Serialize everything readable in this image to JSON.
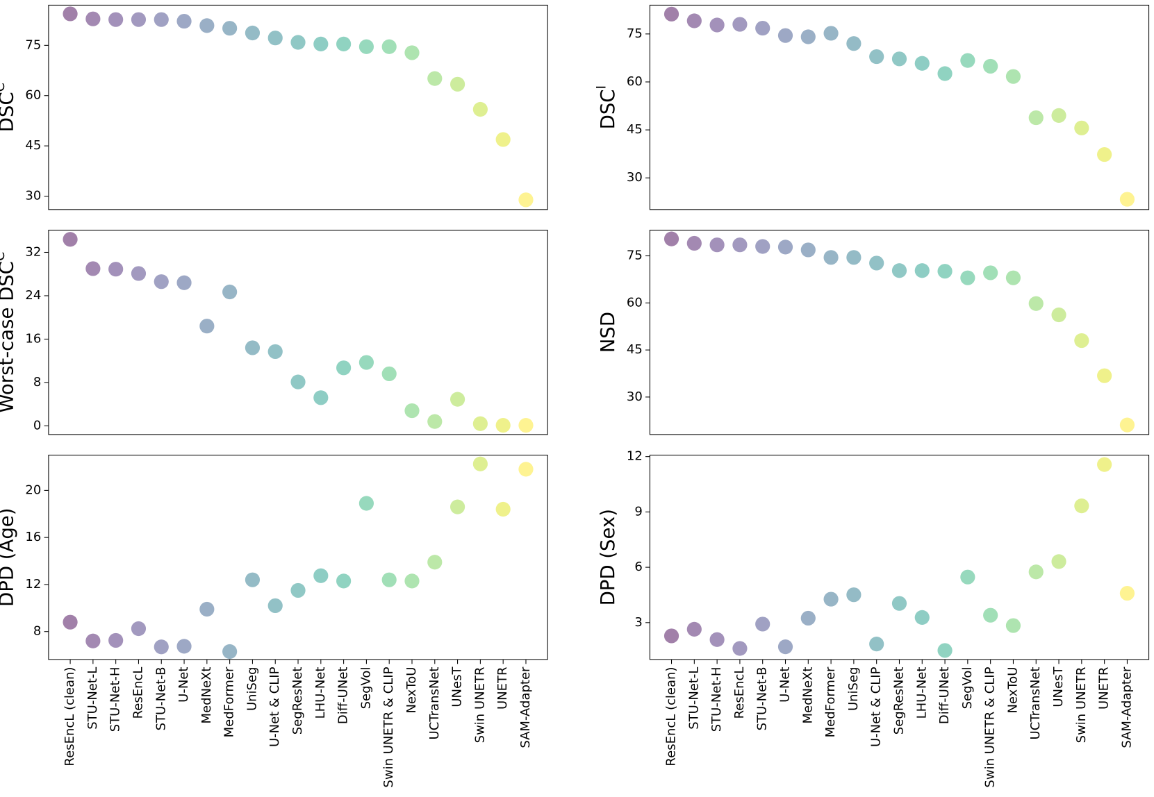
{
  "chart_data": [
    {
      "type": "scatter",
      "ylabel": "DSC",
      "ylabel_superscript": "C",
      "xticklabels": false,
      "categories": [
        "ResEncL (clean)",
        "STU-Net-L",
        "STU-Net-H",
        "ResEncL",
        "STU-Net-B",
        "U-Net",
        "MedNeXt",
        "MedFormer",
        "UniSeg",
        "U-Net & CLIP",
        "SegResNet",
        "LHU-Net",
        "Diff-UNet",
        "SegVol",
        "Swin UNETR & CLIP",
        "NexToU",
        "UCTransNet",
        "UNesT",
        "Swin UNETR",
        "UNETR",
        "SAM-Adapter"
      ],
      "values": [
        84.4,
        82.9,
        82.7,
        82.7,
        82.7,
        82.2,
        80.9,
        80.1,
        78.7,
        77.2,
        75.9,
        75.4,
        75.4,
        74.6,
        74.6,
        72.8,
        65.1,
        63.4,
        55.9,
        46.9,
        28.9
      ],
      "colors": [
        "#440154",
        "#471365",
        "#482475",
        "#463480",
        "#414487",
        "#3b528b",
        "#355f8d",
        "#2f6c8e",
        "#2a788e",
        "#25848e",
        "#21918c",
        "#1e9c89",
        "#22a884",
        "#2fb47c",
        "#44bf70",
        "#5ec962",
        "#7ad151",
        "#9bd93c",
        "#bddf26",
        "#dfe318",
        "#fde725"
      ],
      "ylim": [
        26,
        87
      ],
      "yticks": [
        30,
        45,
        60,
        75
      ]
    },
    {
      "type": "scatter",
      "ylabel": "DSC",
      "ylabel_superscript": "I",
      "xticklabels": false,
      "categories": [
        "ResEncL (clean)",
        "STU-Net-L",
        "STU-Net-H",
        "ResEncL",
        "STU-Net-B",
        "U-Net",
        "MedNeXt",
        "MedFormer",
        "UniSeg",
        "U-Net & CLIP",
        "SegResNet",
        "LHU-Net",
        "Diff-UNet",
        "SegVol",
        "Swin UNETR & CLIP",
        "NexToU",
        "UCTransNet",
        "UNesT",
        "Swin UNETR",
        "UNETR",
        "SAM-Adapter"
      ],
      "values": [
        81.2,
        79.1,
        77.8,
        78.0,
        76.8,
        74.5,
        74.1,
        75.2,
        72.0,
        67.9,
        67.2,
        65.8,
        62.6,
        66.7,
        64.9,
        61.7,
        48.8,
        49.5,
        45.6,
        37.3,
        23.3
      ],
      "colors": [
        "#440154",
        "#471365",
        "#482475",
        "#463480",
        "#414487",
        "#3b528b",
        "#355f8d",
        "#2f6c8e",
        "#2a788e",
        "#25848e",
        "#21918c",
        "#1e9c89",
        "#22a884",
        "#2fb47c",
        "#44bf70",
        "#5ec962",
        "#7ad151",
        "#9bd93c",
        "#bddf26",
        "#dfe318",
        "#fde725"
      ],
      "ylim": [
        20.1,
        84
      ],
      "yticks": [
        30,
        45,
        60,
        75
      ]
    },
    {
      "type": "scatter",
      "ylabel": "Worst-case DSC",
      "ylabel_superscript": "C",
      "xticklabels": false,
      "categories": [
        "ResEncL (clean)",
        "STU-Net-L",
        "STU-Net-H",
        "ResEncL",
        "STU-Net-B",
        "U-Net",
        "MedNeXt",
        "MedFormer",
        "UniSeg",
        "U-Net & CLIP",
        "SegResNet",
        "LHU-Net",
        "Diff-UNet",
        "SegVol",
        "Swin UNETR & CLIP",
        "NexToU",
        "UCTransNet",
        "UNesT",
        "Swin UNETR",
        "UNETR",
        "SAM-Adapter"
      ],
      "values": [
        34.4,
        29.0,
        28.9,
        28.1,
        26.6,
        26.4,
        18.4,
        24.7,
        14.4,
        13.7,
        8.1,
        5.2,
        10.7,
        11.7,
        9.6,
        2.8,
        0.8,
        4.9,
        0.4,
        0.1,
        0.1
      ],
      "colors": [
        "#440154",
        "#471365",
        "#482475",
        "#463480",
        "#414487",
        "#3b528b",
        "#355f8d",
        "#2f6c8e",
        "#2a788e",
        "#25848e",
        "#21918c",
        "#1e9c89",
        "#22a884",
        "#2fb47c",
        "#44bf70",
        "#5ec962",
        "#7ad151",
        "#9bd93c",
        "#bddf26",
        "#dfe318",
        "#fde725"
      ],
      "ylim": [
        -1.6,
        36.1
      ],
      "yticks": [
        0,
        8,
        16,
        24,
        32
      ]
    },
    {
      "type": "scatter",
      "ylabel": "NSD",
      "xticklabels": false,
      "categories": [
        "ResEncL (clean)",
        "STU-Net-L",
        "STU-Net-H",
        "ResEncL",
        "STU-Net-B",
        "U-Net",
        "MedNeXt",
        "MedFormer",
        "UniSeg",
        "U-Net & CLIP",
        "SegResNet",
        "LHU-Net",
        "Diff-UNet",
        "SegVol",
        "Swin UNETR & CLIP",
        "NexToU",
        "UCTransNet",
        "UNesT",
        "Swin UNETR",
        "UNETR",
        "SAM-Adapter"
      ],
      "values": [
        80.4,
        79.0,
        78.5,
        78.5,
        78.0,
        77.8,
        76.9,
        74.5,
        74.5,
        72.7,
        70.3,
        70.3,
        70.1,
        68.0,
        69.6,
        68.0,
        59.8,
        56.2,
        48.0,
        36.8,
        21.1
      ],
      "colors": [
        "#440154",
        "#471365",
        "#482475",
        "#463480",
        "#414487",
        "#3b528b",
        "#355f8d",
        "#2f6c8e",
        "#2a788e",
        "#25848e",
        "#21918c",
        "#1e9c89",
        "#22a884",
        "#2fb47c",
        "#44bf70",
        "#5ec962",
        "#7ad151",
        "#9bd93c",
        "#bddf26",
        "#dfe318",
        "#fde725"
      ],
      "ylim": [
        18.05,
        83.2
      ],
      "yticks": [
        30,
        45,
        60,
        75
      ]
    },
    {
      "type": "scatter",
      "ylabel": "DPD (Age)",
      "xticklabels": true,
      "categories": [
        "ResEncL (clean)",
        "STU-Net-L",
        "STU-Net-H",
        "ResEncL",
        "STU-Net-B",
        "U-Net",
        "MedNeXt",
        "MedFormer",
        "UniSeg",
        "U-Net & CLIP",
        "SegResNet",
        "LHU-Net",
        "Diff-UNet",
        "SegVol",
        "Swin UNETR & CLIP",
        "NexToU",
        "UCTransNet",
        "UNesT",
        "Swin UNETR",
        "UNETR",
        "SAM-Adapter"
      ],
      "values": [
        8.8,
        7.2,
        7.25,
        8.25,
        6.7,
        6.75,
        9.9,
        6.3,
        12.4,
        10.2,
        11.5,
        12.75,
        12.3,
        18.9,
        12.4,
        12.3,
        13.9,
        18.6,
        22.25,
        18.4,
        21.8
      ],
      "colors": [
        "#440154",
        "#471365",
        "#482475",
        "#463480",
        "#414487",
        "#3b528b",
        "#355f8d",
        "#2f6c8e",
        "#2a788e",
        "#25848e",
        "#21918c",
        "#1e9c89",
        "#22a884",
        "#2fb47c",
        "#44bf70",
        "#5ec962",
        "#7ad151",
        "#9bd93c",
        "#bddf26",
        "#dfe318",
        "#fde725"
      ],
      "ylim": [
        5.625,
        23
      ],
      "yticks": [
        8,
        12,
        16,
        20
      ]
    },
    {
      "type": "scatter",
      "ylabel": "DPD (Sex)",
      "xticklabels": true,
      "categories": [
        "ResEncL (clean)",
        "STU-Net-L",
        "STU-Net-H",
        "ResEncL",
        "STU-Net-B",
        "U-Net",
        "MedNeXt",
        "MedFormer",
        "UniSeg",
        "U-Net & CLIP",
        "SegResNet",
        "LHU-Net",
        "Diff-UNet",
        "SegVol",
        "Swin UNETR & CLIP",
        "NexToU",
        "UCTransNet",
        "UNesT",
        "Swin UNETR",
        "UNETR",
        "SAM-Adapter"
      ],
      "values": [
        2.28,
        2.64,
        2.08,
        1.6,
        2.92,
        1.69,
        3.24,
        4.27,
        4.51,
        1.84,
        4.04,
        3.28,
        1.49,
        5.47,
        3.4,
        2.84,
        5.75,
        6.31,
        9.33,
        11.57,
        4.59
      ],
      "colors": [
        "#440154",
        "#471365",
        "#482475",
        "#463480",
        "#414487",
        "#3b528b",
        "#355f8d",
        "#2f6c8e",
        "#2a788e",
        "#25848e",
        "#21918c",
        "#1e9c89",
        "#22a884",
        "#2fb47c",
        "#44bf70",
        "#5ec962",
        "#7ad151",
        "#9bd93c",
        "#bddf26",
        "#dfe318",
        "#fde725"
      ],
      "ylim": [
        1.0,
        12.08
      ],
      "yticks": [
        3,
        6,
        9,
        12
      ]
    }
  ]
}
